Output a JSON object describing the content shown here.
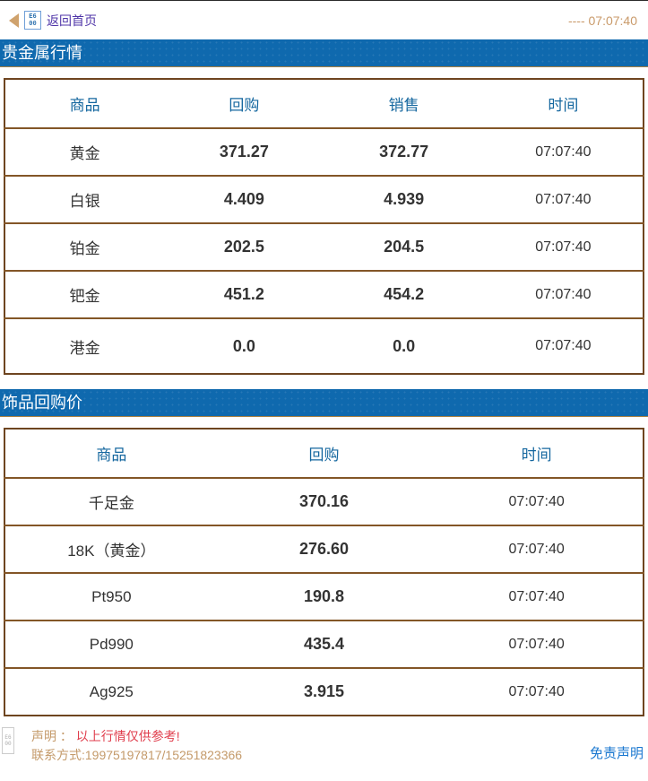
{
  "topbar": {
    "back_label": "返回首页",
    "back_icon_hex_top": "E6",
    "back_icon_hex_bottom": "00",
    "time": "---- 07:07:40"
  },
  "sections": [
    {
      "title": "贵金属行情",
      "columns": [
        "商品",
        "回购",
        "销售",
        "时间"
      ],
      "rows": [
        [
          "黄金",
          "371.27",
          "372.77",
          "07:07:40"
        ],
        [
          "白银",
          "4.409",
          "4.939",
          "07:07:40"
        ],
        [
          "铂金",
          "202.5",
          "204.5",
          "07:07:40"
        ],
        [
          "钯金",
          "451.2",
          "454.2",
          "07:07:40"
        ],
        [
          "港金",
          "0.0",
          "0.0",
          "07:07:40"
        ]
      ]
    },
    {
      "title": "饰品回购价",
      "columns": [
        "商品",
        "回购",
        "时间"
      ],
      "rows": [
        [
          "千足金",
          "370.16",
          "07:07:40"
        ],
        [
          "18K（黄金）",
          "276.60",
          "07:07:40"
        ],
        [
          "Pt950",
          "190.8",
          "07:07:40"
        ],
        [
          "Pd990",
          "435.4",
          "07:07:40"
        ],
        [
          "Ag925",
          "3.915",
          "07:07:40"
        ]
      ]
    }
  ],
  "footer": {
    "disclaimer_label": "声明 ：",
    "disclaimer_text": "以上行情仅供参考!",
    "contact": "联系方式:19975197817/15251823366",
    "icon_hex_top": "E6",
    "icon_hex_bottom": "00",
    "link_label": "免责声明"
  },
  "colors": {
    "accent_blue": "#0f69ae",
    "header_text_blue": "#15679f",
    "table_border_brown": "#6e4520",
    "row_divider_brown": "#835627",
    "tan_text": "#c49a6a",
    "alert_red": "#e03e4d",
    "link_blue": "#1b78d0",
    "back_link_purple": "#4f35a8"
  }
}
